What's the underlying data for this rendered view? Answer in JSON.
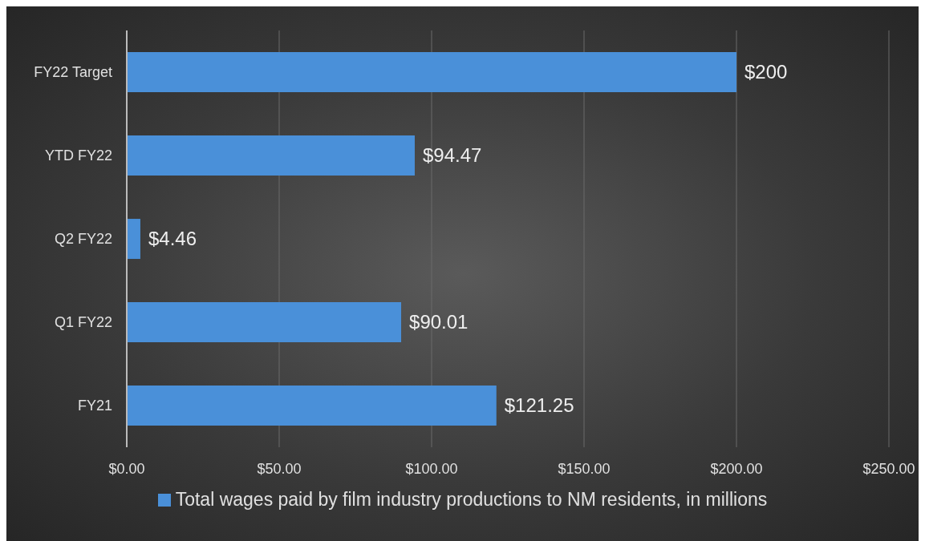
{
  "chart_data": {
    "type": "bar",
    "orientation": "horizontal",
    "categories": [
      "FY22 Target",
      "YTD FY22",
      "Q2 FY22",
      "Q1 FY22",
      "FY21"
    ],
    "series": [
      {
        "name": "Total wages paid by film industry productions to NM residents, in millions",
        "color": "#4a90d9",
        "values": [
          200,
          94.47,
          4.46,
          90.01,
          121.25
        ],
        "value_labels": [
          "$200",
          "$94.47",
          "$4.46",
          "$90.01",
          "$121.25"
        ]
      }
    ],
    "xlim": [
      0,
      250
    ],
    "xticks": [
      {
        "value": 0,
        "label": "$0.00"
      },
      {
        "value": 50,
        "label": "$50.00"
      },
      {
        "value": 100,
        "label": "$100.00"
      },
      {
        "value": 150,
        "label": "$150.00"
      },
      {
        "value": 200,
        "label": "$200.00"
      },
      {
        "value": 250,
        "label": "$250.00"
      }
    ],
    "grid": "x",
    "legend": "bottom"
  }
}
